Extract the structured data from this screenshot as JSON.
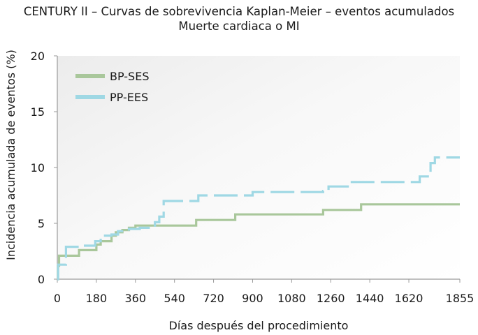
{
  "chart_data": {
    "type": "line",
    "title": "CENTURY II – Curvas de sobrevivencia Kaplan-Meier – eventos acumulados",
    "subtitle": "Muerte cardiaca o MI",
    "xlabel": "Días después del procedimiento",
    "ylabel": "Incidencia acumulada de eventos (%)",
    "xlim": [
      0,
      1855
    ],
    "ylim": [
      0,
      20
    ],
    "xticks": [
      "0",
      "180",
      "360",
      "540",
      "720",
      "900",
      "1080",
      "1260",
      "1440",
      "1620",
      "1855"
    ],
    "xtick_values": [
      0,
      180,
      360,
      540,
      720,
      900,
      1080,
      1260,
      1440,
      1620,
      1855
    ],
    "yticks": [
      "0",
      "5",
      "10",
      "15",
      "20"
    ],
    "ytick_values": [
      0,
      5,
      10,
      15,
      20
    ],
    "legend_position": "top-left",
    "series": [
      {
        "name": "BP-SES",
        "color": "#a9c79b",
        "style": "solid",
        "x": [
          0,
          3,
          8,
          100,
          180,
          200,
          250,
          270,
          300,
          330,
          360,
          420,
          480,
          520,
          640,
          760,
          820,
          1000,
          1225,
          1300,
          1400,
          1500,
          1600,
          1855
        ],
        "y": [
          0,
          1.2,
          2.1,
          2.6,
          3.1,
          3.4,
          3.9,
          4.2,
          4.4,
          4.6,
          4.8,
          4.8,
          4.8,
          4.8,
          5.3,
          5.3,
          5.8,
          5.8,
          6.2,
          6.2,
          6.7,
          6.7,
          6.7,
          6.7
        ]
      },
      {
        "name": "PP-EES",
        "color": "#9fd8e4",
        "style": "dashed",
        "x": [
          0,
          4,
          40,
          100,
          175,
          200,
          220,
          250,
          280,
          330,
          380,
          400,
          450,
          470,
          490,
          520,
          650,
          740,
          900,
          1100,
          1225,
          1250,
          1350,
          1640,
          1670,
          1720,
          1740,
          1855
        ],
        "y": [
          0,
          1.3,
          2.9,
          3.0,
          3.4,
          3.7,
          3.9,
          4.0,
          4.3,
          4.5,
          4.6,
          4.6,
          5.1,
          5.6,
          7.0,
          7.0,
          7.5,
          7.5,
          7.8,
          7.8,
          7.9,
          8.3,
          8.7,
          8.7,
          9.2,
          10.4,
          10.9,
          10.9
        ]
      }
    ]
  }
}
